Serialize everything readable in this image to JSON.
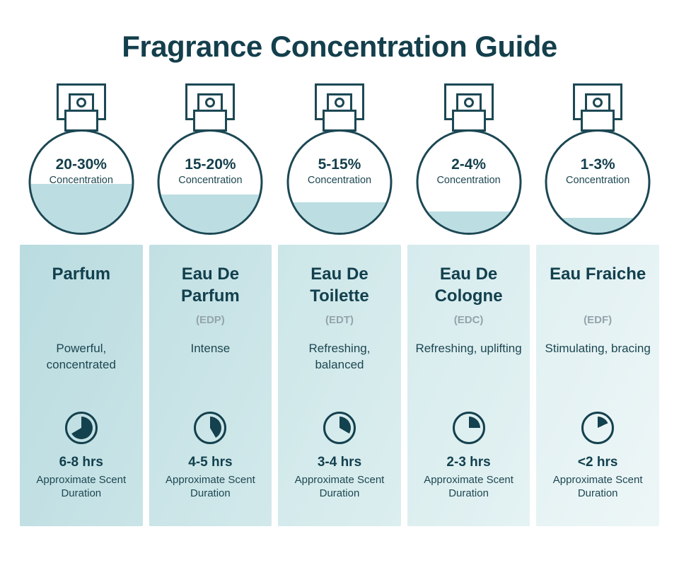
{
  "page": {
    "title": "Fragrance Concentration Guide"
  },
  "colors": {
    "ink": "#14414e",
    "outline": "#1c4854",
    "liquid": "#bcdee2",
    "abbr_gray": "#93a4ab"
  },
  "columns": [
    {
      "concentration": "20-30%",
      "concentration_label": "Concentration",
      "fill_percent": 48,
      "name": "Parfum",
      "abbr": "",
      "description": "Powerful, concentrated",
      "pie_degrees": 240,
      "duration": "6-8 hrs",
      "duration_label": "Approximate Scent Duration",
      "card_bg": [
        "#badce0",
        "#c9e4e7"
      ]
    },
    {
      "concentration": "15-20%",
      "concentration_label": "Concentration",
      "fill_percent": 38,
      "name": "Eau De Parfum",
      "abbr": "(EDP)",
      "description": "Intense",
      "pie_degrees": 150,
      "duration": "4-5 hrs",
      "duration_label": "Approximate Scent Duration",
      "card_bg": [
        "#c2e0e3",
        "#d2e9eb"
      ]
    },
    {
      "concentration": "5-15%",
      "concentration_label": "Concentration",
      "fill_percent": 30,
      "name": "Eau De Toilette",
      "abbr": "(EDT)",
      "description": "Refreshing, balanced",
      "pie_degrees": 120,
      "duration": "3-4 hrs",
      "duration_label": "Approximate Scent Duration",
      "card_bg": [
        "#cce6e8",
        "#dceeef"
      ]
    },
    {
      "concentration": "2-4%",
      "concentration_label": "Concentration",
      "fill_percent": 21,
      "name": "Eau De Cologne",
      "abbr": "(EDC)",
      "description": "Refreshing, uplifting",
      "pie_degrees": 90,
      "duration": "2-3 hrs",
      "duration_label": "Approximate Scent Duration",
      "card_bg": [
        "#d6ebed",
        "#e4f2f3"
      ]
    },
    {
      "concentration": "1-3%",
      "concentration_label": "Concentration",
      "fill_percent": 15,
      "name": "Eau Fraiche",
      "abbr": "(EDF)",
      "description": "Stimulating, bracing",
      "pie_degrees": 65,
      "duration": "<2 hrs",
      "duration_label": "Approximate Scent Duration",
      "card_bg": [
        "#e0f0f1",
        "#edf6f7"
      ]
    }
  ]
}
